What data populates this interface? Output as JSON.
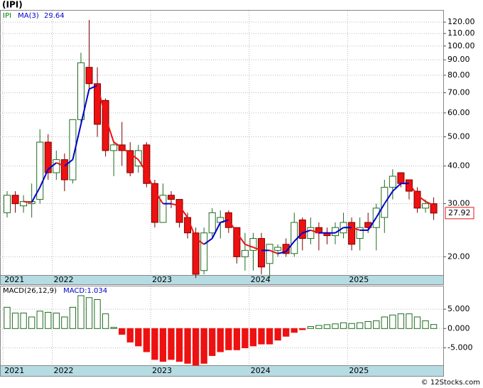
{
  "chart_data": [
    {
      "type": "candlestick",
      "title": "(IPI)",
      "name": "IPI",
      "name_color": "#008000",
      "log_scale": true,
      "grid": true,
      "categories": [
        "2021",
        null,
        null,
        null,
        null,
        null,
        "2022",
        null,
        null,
        null,
        null,
        null,
        null,
        null,
        null,
        null,
        null,
        null,
        "2023",
        null,
        null,
        null,
        null,
        null,
        null,
        null,
        null,
        null,
        null,
        null,
        "2024",
        null,
        null,
        null,
        null,
        null,
        null,
        null,
        null,
        null,
        null,
        null,
        "2025",
        null,
        null,
        null,
        null,
        null,
        null,
        null,
        null,
        null,
        null
      ],
      "open": [
        28,
        32,
        29.5,
        30,
        31,
        48,
        38,
        42,
        36,
        57,
        85,
        75,
        66,
        45,
        47,
        45,
        40,
        47,
        35,
        26,
        32,
        31,
        27,
        24,
        18,
        24,
        26,
        28,
        25,
        20,
        21,
        23,
        19,
        21,
        22,
        20.5,
        26.5,
        23,
        25,
        24,
        23.5,
        24,
        26,
        23,
        26,
        25,
        27,
        34,
        38,
        36,
        33,
        29,
        30
      ],
      "high": [
        33,
        33,
        32,
        35,
        53,
        51,
        45,
        44,
        57,
        95,
        122,
        85,
        67,
        48,
        56,
        48,
        47,
        48,
        36,
        35,
        33,
        31,
        28,
        25,
        25,
        29,
        28.5,
        28.5,
        25,
        24,
        24,
        24,
        22,
        22,
        23,
        28,
        27,
        27,
        26,
        25,
        26,
        28,
        27,
        27,
        28,
        30,
        36,
        39,
        38,
        36,
        34,
        31,
        31.5
      ],
      "low": [
        27,
        28,
        28,
        27,
        30,
        36,
        36,
        33,
        35,
        55,
        72,
        50,
        43,
        37,
        40,
        37,
        38,
        34,
        25,
        26,
        29,
        25,
        23,
        17,
        17.5,
        23,
        23,
        24,
        19,
        18,
        18,
        17.5,
        17,
        20,
        20,
        20,
        21,
        22,
        21,
        22,
        22,
        23,
        21,
        21,
        24,
        21,
        24,
        31,
        34,
        31,
        28,
        28,
        26.5
      ],
      "close": [
        32,
        30,
        30.5,
        30.5,
        48,
        38,
        42,
        36,
        57,
        88,
        75,
        55,
        45,
        47,
        45,
        38,
        45,
        35,
        26,
        32,
        31,
        26,
        24,
        17.5,
        24,
        28,
        27,
        25,
        20,
        21,
        23,
        18.5,
        22,
        21.5,
        20.5,
        26,
        23,
        25,
        24,
        23.5,
        25,
        26,
        22,
        25,
        25,
        29,
        34,
        37,
        35,
        33,
        29,
        30,
        27.92
      ],
      "up_color": "#ffffff",
      "up_edge": "#1f6b1f",
      "down_color": "#ee1111",
      "down_edge": "#7a0000",
      "ma": {
        "name": "MA(3)",
        "up_color": "#0000cc",
        "down_color": "#ee1111",
        "values": [
          null,
          null,
          30.5,
          30.3,
          34,
          39,
          41,
          40,
          42,
          55,
          72,
          74,
          58,
          48,
          46,
          44,
          42,
          38,
          33,
          30,
          30,
          29.5,
          27,
          23,
          22,
          23,
          26,
          26.5,
          24,
          22,
          21.5,
          21,
          21,
          20.5,
          20.8,
          22.5,
          24,
          24.5,
          24,
          24,
          24,
          25,
          25,
          24.5,
          24.5,
          27,
          30,
          33,
          35,
          35,
          32,
          30.5,
          29.64
        ]
      },
      "ylim": [
        17.4,
        131
      ],
      "yticks": [
        {
          "value": 20,
          "label": "20.00"
        },
        {
          "value": 30,
          "label": "30.00"
        },
        {
          "value": 40,
          "label": "40.00"
        },
        {
          "value": 50,
          "label": "50.00"
        },
        {
          "value": 60,
          "label": "60.00"
        },
        {
          "value": 70,
          "label": "70.00"
        },
        {
          "value": 80,
          "label": "80.00"
        },
        {
          "value": 90,
          "label": "90.00"
        },
        {
          "value": 100,
          "label": "100.00"
        },
        {
          "value": 110,
          "label": "110.00"
        },
        {
          "value": 120,
          "label": "120.00"
        }
      ]
    },
    {
      "type": "histogram_macd",
      "title": "MACD(26,12,9)",
      "value_prefix": "MACD:",
      "grid": true,
      "categories": [
        "2021",
        null,
        null,
        null,
        null,
        null,
        "2022",
        null,
        null,
        null,
        null,
        null,
        null,
        null,
        null,
        null,
        null,
        null,
        "2023",
        null,
        null,
        null,
        null,
        null,
        null,
        null,
        null,
        null,
        null,
        null,
        "2024",
        null,
        null,
        null,
        null,
        null,
        null,
        null,
        null,
        null,
        null,
        null,
        "2025",
        null,
        null,
        null,
        null,
        null,
        null,
        null,
        null,
        null,
        null
      ],
      "values": [
        5.5,
        4,
        4,
        3,
        4.5,
        4.2,
        4,
        3,
        5.5,
        8.5,
        8,
        7.5,
        3.8,
        0.3,
        -1.5,
        -3.5,
        -4.5,
        -6,
        -8,
        -8.5,
        -8,
        -8.5,
        -9,
        -9.5,
        -9,
        -7,
        -6,
        -5.5,
        -5.5,
        -5,
        -4.5,
        -4,
        -4,
        -3,
        -2,
        -1,
        -0.3,
        0.5,
        0.8,
        1,
        1.2,
        1.5,
        1.3,
        1.5,
        1.8,
        2,
        3,
        3.5,
        3.8,
        3.8,
        3,
        2,
        1.034
      ],
      "pos_color": "#1f6b1f",
      "neg_color": "#ee1111",
      "ylim": [
        -9.5,
        10.9
      ],
      "yticks": [
        {
          "value": -5,
          "label": "-5.000"
        },
        {
          "value": 0,
          "label": "0.000"
        },
        {
          "value": 5,
          "label": "5.000"
        }
      ]
    }
  ],
  "footer": "© 12Stocks.com"
}
